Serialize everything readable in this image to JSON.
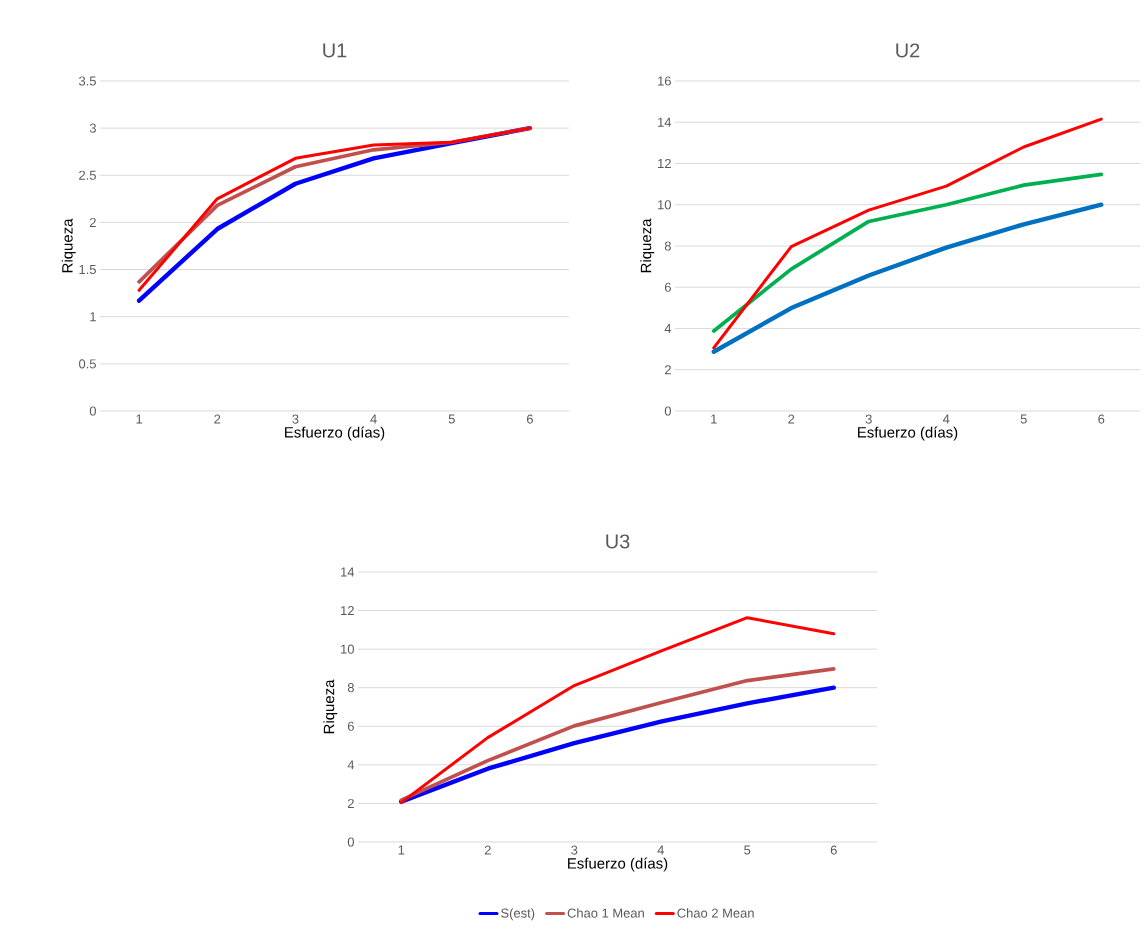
{
  "chart_data": [
    {
      "type": "line",
      "title": "U1",
      "xlabel": "Esfuerzo (días)",
      "ylabel": "Riqueza",
      "categories": [
        "1",
        "2",
        "3",
        "4",
        "5",
        "6"
      ],
      "ylim": [
        0,
        3.5
      ],
      "yticks": [
        0,
        0.5,
        1,
        1.5,
        2,
        2.5,
        3,
        3.5
      ],
      "grid": "y",
      "marker": "none",
      "line_style": "solid",
      "series": [
        {
          "color": "#0000ff",
          "values": [
            1.17,
            1.93,
            2.41,
            2.68,
            2.84,
            3.0
          ]
        },
        {
          "color": "#c0504d",
          "values": [
            1.37,
            2.18,
            2.59,
            2.77,
            2.85,
            3.0
          ]
        },
        {
          "color": "#ff0000",
          "values": [
            1.28,
            2.25,
            2.68,
            2.82,
            2.85,
            3.0
          ]
        }
      ]
    },
    {
      "type": "line",
      "title": "U2",
      "xlabel": "Esfuerzo (días)",
      "ylabel": "Riqueza",
      "categories": [
        "1",
        "2",
        "3",
        "4",
        "5",
        "6"
      ],
      "ylim": [
        0,
        16
      ],
      "yticks": [
        0,
        2,
        4,
        6,
        8,
        10,
        12,
        14,
        16
      ],
      "grid": "y",
      "marker": "none",
      "line_style": "solid",
      "series": [
        {
          "color": "#0070c0",
          "values": [
            2.87,
            4.99,
            6.57,
            7.92,
            9.05,
            10.0
          ]
        },
        {
          "color": "#00b050",
          "values": [
            3.88,
            6.88,
            9.19,
            10.0,
            10.95,
            11.47
          ]
        },
        {
          "color": "#ff0000",
          "values": [
            3.06,
            7.97,
            9.74,
            10.9,
            12.8,
            14.15
          ]
        }
      ]
    },
    {
      "type": "line",
      "title": "U3",
      "xlabel": "Esfuerzo (días)",
      "ylabel": "Riqueza",
      "categories": [
        "1",
        "2",
        "3",
        "4",
        "5",
        "6"
      ],
      "ylim": [
        0,
        14
      ],
      "yticks": [
        0,
        2,
        4,
        6,
        8,
        10,
        12,
        14
      ],
      "grid": "y",
      "marker": "none",
      "line_style": "solid",
      "legend": "bottom",
      "series": [
        {
          "name": "S(est)",
          "color": "#0000ff",
          "values": [
            2.09,
            3.8,
            5.13,
            6.24,
            7.19,
            8.0
          ]
        },
        {
          "name": "Chao 1 Mean",
          "color": "#c0504d",
          "values": [
            2.17,
            4.22,
            6.02,
            7.22,
            8.37,
            8.98
          ]
        },
        {
          "name": "Chao 2 Mean",
          "color": "#ff0000",
          "values": [
            2.04,
            5.41,
            8.11,
            9.9,
            11.63,
            10.8
          ]
        }
      ]
    }
  ]
}
